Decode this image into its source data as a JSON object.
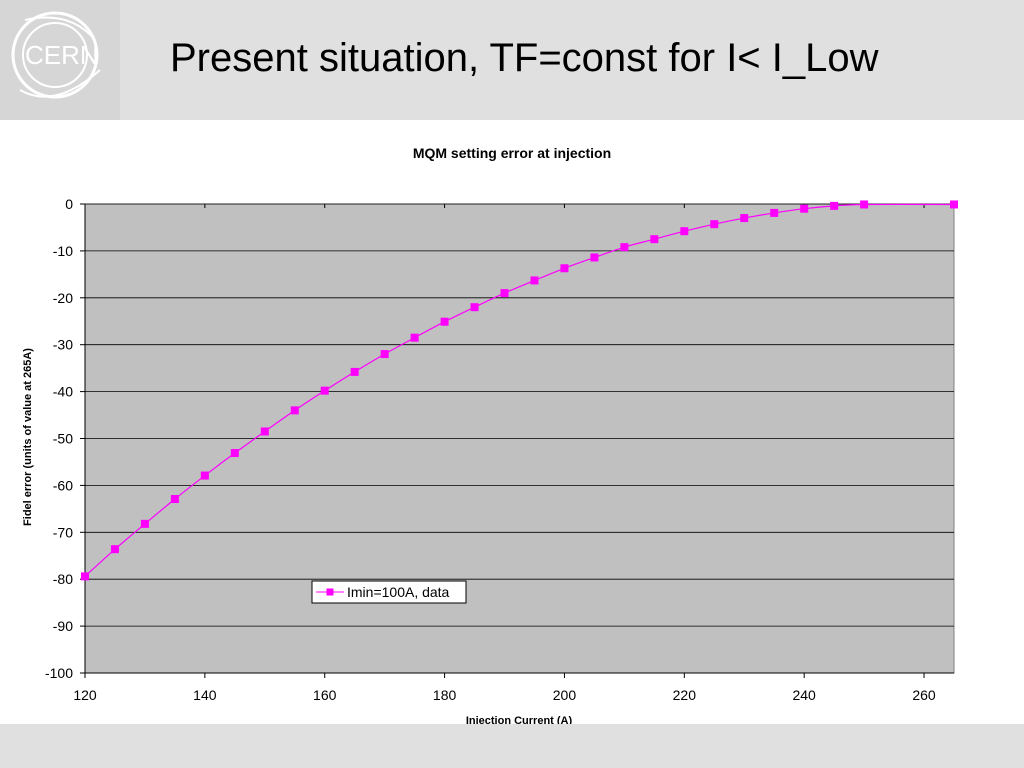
{
  "slide": {
    "title": "Present situation, TF=const for I< I_Low",
    "logo_text": "CERN"
  },
  "colors": {
    "header_bg": "#e0e0e0",
    "plot_bg": "#c0c0c0",
    "series": "#ff00ff"
  },
  "chart_data": {
    "type": "line",
    "title": "MQM setting error at injection",
    "xlabel": "Injection Current (A)",
    "ylabel": "Fidel error (units of value at 265A)",
    "xlim": [
      120,
      265
    ],
    "ylim": [
      -100,
      0
    ],
    "xticks": [
      120,
      140,
      160,
      180,
      200,
      220,
      240,
      260
    ],
    "yticks": [
      0,
      -10,
      -20,
      -30,
      -40,
      -50,
      -60,
      -70,
      -80,
      -90,
      -100
    ],
    "grid": "horizontal",
    "legend_position": "bottom-center",
    "series": [
      {
        "name": "Imin=100A, data",
        "x": [
          120,
          125,
          130,
          135,
          140,
          145,
          150,
          155,
          160,
          165,
          170,
          175,
          180,
          185,
          190,
          195,
          200,
          205,
          210,
          215,
          220,
          225,
          230,
          235,
          240,
          245,
          250,
          265
        ],
        "y": [
          -79.4,
          -73.6,
          -68.2,
          -62.9,
          -57.9,
          -53.1,
          -48.5,
          -44.0,
          -39.8,
          -35.8,
          -32.0,
          -28.5,
          -25.1,
          -22.0,
          -19.0,
          -16.3,
          -13.7,
          -11.4,
          -9.2,
          -7.5,
          -5.8,
          -4.3,
          -3.0,
          -1.9,
          -1.0,
          -0.4,
          -0.1,
          -0.1
        ]
      }
    ]
  }
}
